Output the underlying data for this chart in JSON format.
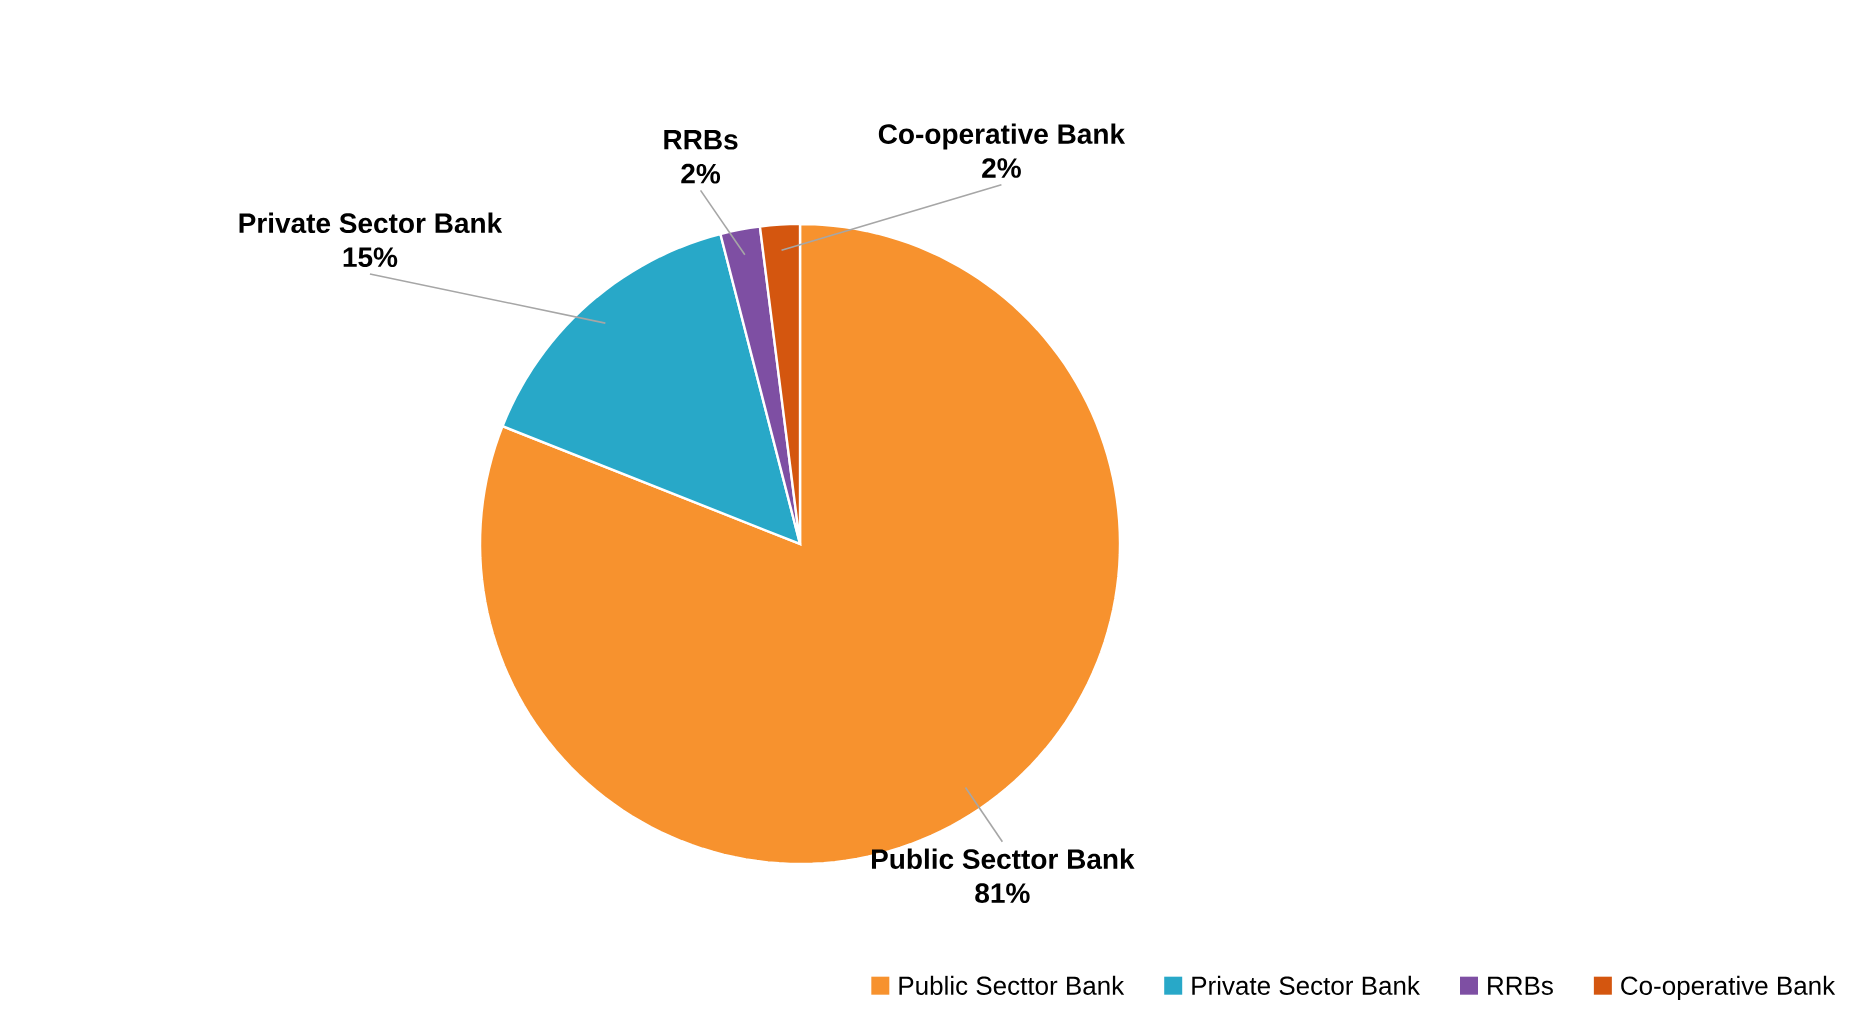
{
  "chart_data": {
    "type": "pie",
    "categories": [
      "Public Secttor Bank",
      "Private Sector Bank",
      "RRBs",
      "Co-operative Bank"
    ],
    "values": [
      81,
      15,
      2,
      2
    ],
    "colors": [
      "#f7922e",
      "#28a8c8",
      "#7e4fa3",
      "#d4560f"
    ],
    "value_labels": [
      "81%",
      "15%",
      "2%",
      "2%"
    ],
    "legend": "bottom"
  }
}
